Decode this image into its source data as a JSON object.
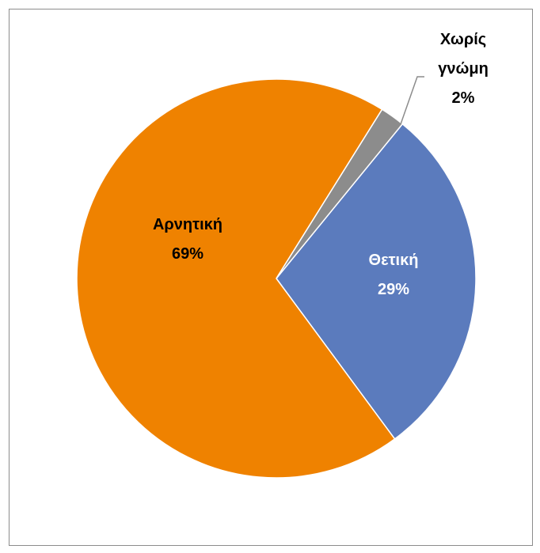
{
  "chart_data": {
    "type": "pie",
    "categories": [
      "Θετική",
      "Αρνητική",
      "Χωρίς γνώμη"
    ],
    "values": [
      29,
      69,
      2
    ],
    "value_labels": [
      "29%",
      "69%",
      "2%"
    ],
    "colors": [
      "#5b7bbd",
      "#ef8200",
      "#8c8c8c"
    ]
  }
}
